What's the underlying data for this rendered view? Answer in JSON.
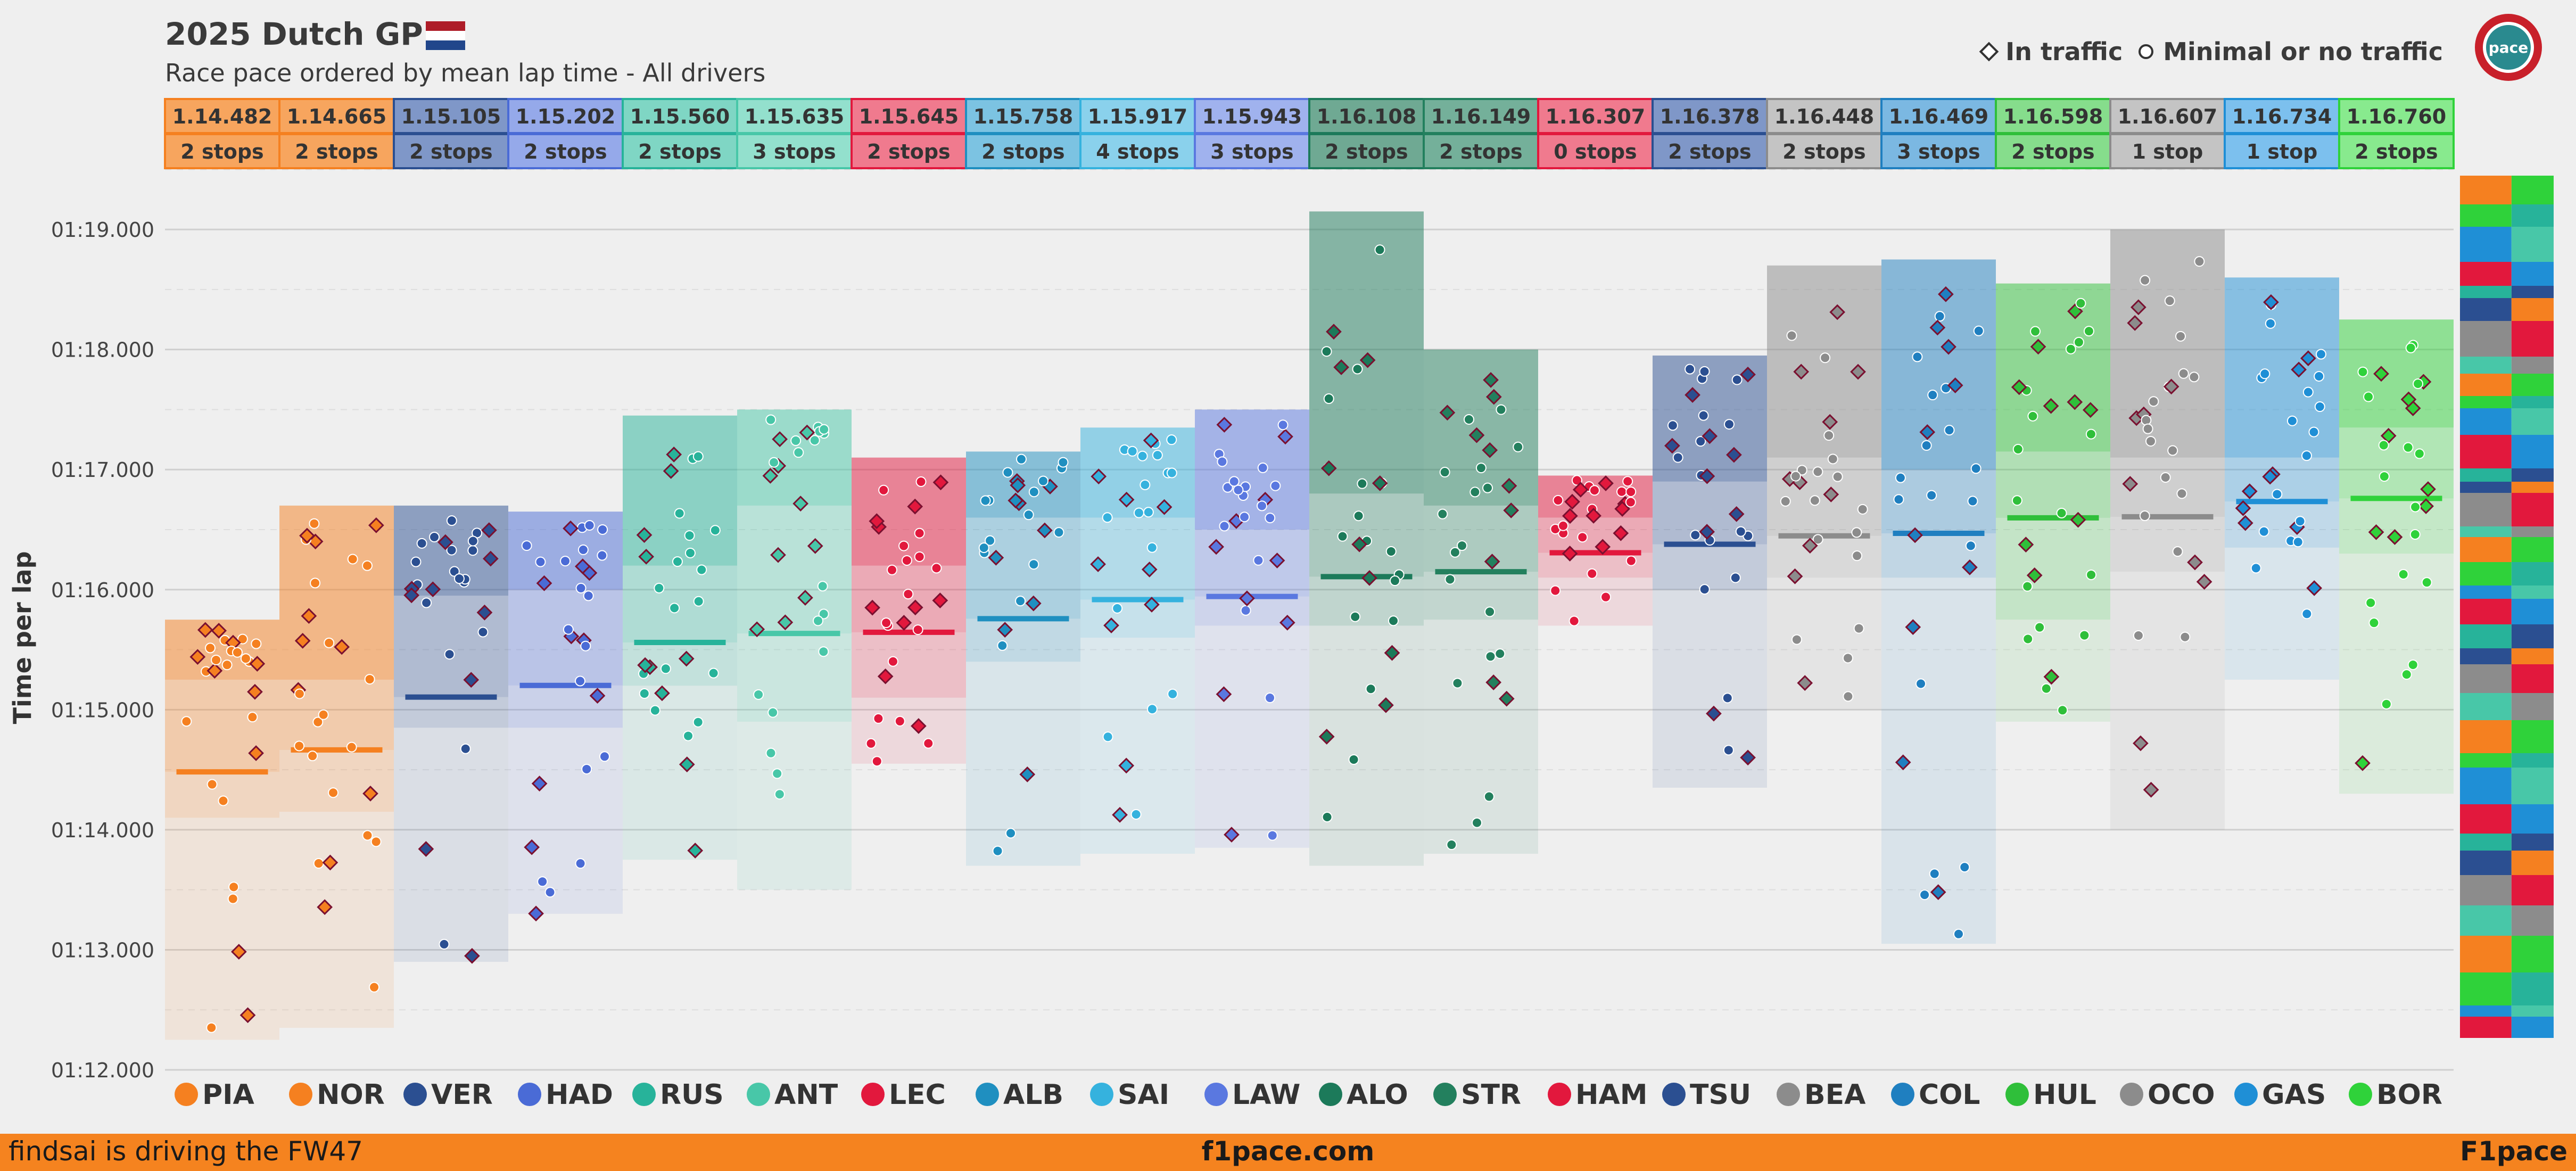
{
  "header": {
    "title": "2025 Dutch GP",
    "subtitle": "Race pace ordered by mean lap time - All drivers"
  },
  "legend": {
    "traffic_label": "In traffic",
    "no_traffic_label": "Minimal or no traffic",
    "traffic_icon": "diamond-marker",
    "no_traffic_icon": "circle-marker"
  },
  "logo": {
    "text": "pace"
  },
  "footer": {
    "left": "findsai is driving the FW47",
    "center": "f1pace.com",
    "right": "F1pace",
    "background": "#f5831f"
  },
  "chart_data": {
    "type": "scatter",
    "title": "2025 Dutch GP",
    "subtitle": "Race pace ordered by mean lap time - All drivers",
    "xlabel": "",
    "ylabel": "Time per lap",
    "ylim": [
      72.0,
      79.2
    ],
    "y_ticks": [
      {
        "value": 72,
        "label": "01:12.000"
      },
      {
        "value": 73,
        "label": "01:13.000"
      },
      {
        "value": 74,
        "label": "01:14.000"
      },
      {
        "value": 75,
        "label": "01:15.000"
      },
      {
        "value": 76,
        "label": "01:16.000"
      },
      {
        "value": 77,
        "label": "01:17.000"
      },
      {
        "value": 78,
        "label": "01:18.000"
      },
      {
        "value": 79,
        "label": "01:19.000"
      }
    ],
    "grid": true,
    "legend_position": "top-right",
    "drivers": [
      {
        "code": "PIA",
        "mean": "1.14.482",
        "meanv": 74.482,
        "stops": "2 stops",
        "color": "#f58020",
        "light": "#f7a55e",
        "min": 72.25,
        "max": 75.75,
        "box_top": 75.75,
        "q3": 75.25,
        "q1": 74.1
      },
      {
        "code": "NOR",
        "mean": "1.14.665",
        "meanv": 74.665,
        "stops": "2 stops",
        "color": "#f58020",
        "light": "#f7a55e",
        "min": 72.35,
        "max": 76.7,
        "box_top": 76.7,
        "q3": 75.25,
        "q1": 74.15
      },
      {
        "code": "VER",
        "mean": "1.15.105",
        "meanv": 75.105,
        "stops": "2 stops",
        "color": "#2b4f91",
        "light": "#7f97c8",
        "min": 72.9,
        "max": 76.7,
        "box_top": 76.7,
        "q3": 75.95,
        "q1": 74.85
      },
      {
        "code": "HAD",
        "mean": "1.15.202",
        "meanv": 75.202,
        "stops": "2 stops",
        "color": "#4a6bd6",
        "light": "#95a9ea",
        "min": 73.3,
        "max": 76.65,
        "box_top": 76.65,
        "q3": 76.0,
        "q1": 74.85
      },
      {
        "code": "RUS",
        "mean": "1.15.560",
        "meanv": 75.56,
        "stops": "2 stops",
        "color": "#27b39a",
        "light": "#7fd6c4",
        "min": 73.75,
        "max": 77.45,
        "box_top": 77.45,
        "q3": 76.2,
        "q1": 75.2
      },
      {
        "code": "ANT",
        "mean": "1.15.635",
        "meanv": 75.635,
        "stops": "3 stops",
        "color": "#48c7a8",
        "light": "#93e0cd",
        "min": 73.5,
        "max": 77.5,
        "box_top": 77.5,
        "q3": 76.7,
        "q1": 74.9
      },
      {
        "code": "LEC",
        "mean": "1.15.645",
        "meanv": 75.645,
        "stops": "2 stops",
        "color": "#e2183d",
        "light": "#f07a8e",
        "min": 74.55,
        "max": 77.1,
        "box_top": 77.1,
        "q3": 76.2,
        "q1": 75.1
      },
      {
        "code": "ALB",
        "mean": "1.15.758",
        "meanv": 75.758,
        "stops": "2 stops",
        "color": "#1f8fc0",
        "light": "#7cc3e2",
        "min": 73.7,
        "max": 77.15,
        "box_top": 77.15,
        "q3": 76.6,
        "q1": 75.4
      },
      {
        "code": "SAI",
        "mean": "1.15.917",
        "meanv": 75.917,
        "stops": "4 stops",
        "color": "#35b2de",
        "light": "#8ad1ec",
        "min": 73.8,
        "max": 77.35,
        "box_top": 77.35,
        "q3": 76.6,
        "q1": 75.6
      },
      {
        "code": "LAW",
        "mean": "1.15.943",
        "meanv": 75.943,
        "stops": "3 stops",
        "color": "#5a78e0",
        "light": "#a0b2ee",
        "min": 73.85,
        "max": 77.5,
        "box_top": 77.5,
        "q3": 76.5,
        "q1": 75.7
      },
      {
        "code": "ALO",
        "mean": "1.16.108",
        "meanv": 76.108,
        "stops": "2 stops",
        "color": "#1c7a5a",
        "light": "#6fa993",
        "min": 73.7,
        "max": 79.15,
        "box_top": 79.15,
        "q3": 76.8,
        "q1": 75.7
      },
      {
        "code": "STR",
        "mean": "1.16.149",
        "meanv": 76.149,
        "stops": "2 stops",
        "color": "#23805e",
        "light": "#74b09a",
        "min": 73.8,
        "max": 78.0,
        "box_top": 78.0,
        "q3": 76.7,
        "q1": 75.75
      },
      {
        "code": "HAM",
        "mean": "1.16.307",
        "meanv": 76.307,
        "stops": "0 stops",
        "color": "#e2183d",
        "light": "#f07a8e",
        "min": 75.7,
        "max": 76.95,
        "box_top": 76.95,
        "q3": 76.6,
        "q1": 76.1
      },
      {
        "code": "TSU",
        "mean": "1.16.378",
        "meanv": 76.378,
        "stops": "2 stops",
        "color": "#2b4f91",
        "light": "#7f97c8",
        "min": 74.35,
        "max": 77.95,
        "box_top": 77.95,
        "q3": 76.9,
        "q1": 76.0
      },
      {
        "code": "BEA",
        "mean": "1.16.448",
        "meanv": 76.448,
        "stops": "2 stops",
        "color": "#8c8c8c",
        "light": "#c4c4c4",
        "min": 75.0,
        "max": 78.7,
        "box_top": 78.7,
        "q3": 77.1,
        "q1": 76.1
      },
      {
        "code": "COL",
        "mean": "1.16.469",
        "meanv": 76.469,
        "stops": "3 stops",
        "color": "#1f7fc0",
        "light": "#7bb8e2",
        "min": 73.05,
        "max": 78.75,
        "box_top": 78.75,
        "q3": 77.0,
        "q1": 76.1
      },
      {
        "code": "HUL",
        "mean": "1.16.598",
        "meanv": 76.598,
        "stops": "2 stops",
        "color": "#2fbf3a",
        "light": "#86dd8c",
        "min": 74.9,
        "max": 78.55,
        "box_top": 78.55,
        "q3": 77.15,
        "q1": 75.75
      },
      {
        "code": "OCO",
        "mean": "1.16.607",
        "meanv": 76.607,
        "stops": "1 stop",
        "color": "#8c8c8c",
        "light": "#c4c4c4",
        "min": 74.0,
        "max": 79.0,
        "box_top": 79.0,
        "q3": 77.1,
        "q1": 76.15
      },
      {
        "code": "GAS",
        "mean": "1.16.734",
        "meanv": 76.734,
        "stops": "1 stop",
        "color": "#1f8fd6",
        "light": "#7cc0ee",
        "min": 75.25,
        "max": 78.6,
        "box_top": 78.6,
        "q3": 77.1,
        "q1": 76.35
      },
      {
        "code": "BOR",
        "mean": "1.16.760",
        "meanv": 76.76,
        "stops": "2 stops",
        "color": "#2fd23a",
        "light": "#88ea8e",
        "min": 74.3,
        "max": 78.25,
        "box_top": 78.25,
        "q3": 77.35,
        "q1": 76.3
      }
    ]
  }
}
